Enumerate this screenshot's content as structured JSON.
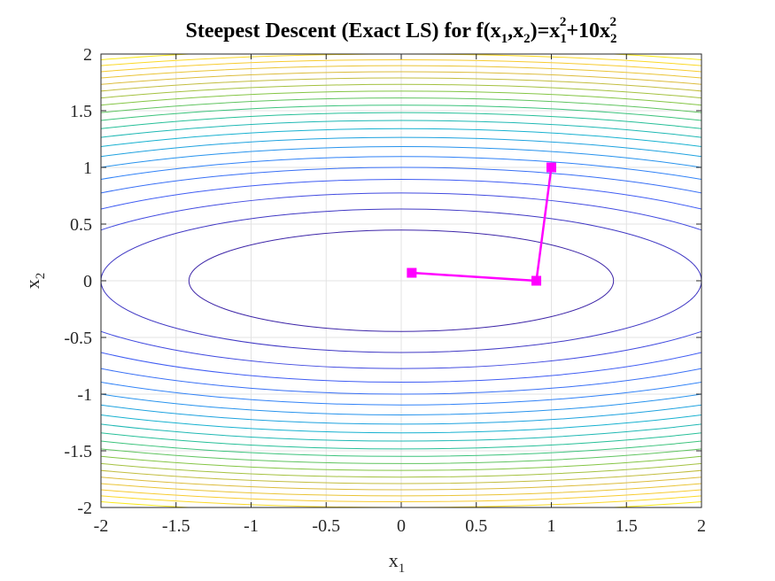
{
  "chart_data": {
    "type": "line",
    "title": {
      "prefix": "Steepest Descent (Exact LS) for f(x",
      "sub1": "1",
      "mid1": ",x",
      "sub2": "2",
      "mid2": ")=x",
      "sub3": "1",
      "sup3": "2",
      "mid3": "+10x",
      "sub4": "2",
      "sup4": "2"
    },
    "xlabel": {
      "base": "x",
      "sub": "1"
    },
    "ylabel": {
      "base": "x",
      "sub": "2"
    },
    "xlim": [
      -2,
      2
    ],
    "ylim": [
      -2,
      2
    ],
    "xticks": [
      -2,
      -1.5,
      -1,
      -0.5,
      0,
      0.5,
      1,
      1.5,
      2
    ],
    "yticks": [
      -2,
      -1.5,
      -1,
      -0.5,
      0,
      0.5,
      1,
      1.5,
      2
    ],
    "xtick_labels": [
      "-2",
      "-1.5",
      "-1",
      "-0.5",
      "0",
      "0.5",
      "1",
      "1.5",
      "2"
    ],
    "ytick_labels": [
      "-2",
      "-1.5",
      "-1",
      "-0.5",
      "0",
      "0.5",
      "1",
      "1.5",
      "2"
    ],
    "grid": true,
    "contour": {
      "function": "x1^2 + 10*x2^2",
      "levels": [
        2,
        4,
        6,
        8,
        10,
        12,
        14,
        16,
        18,
        20,
        22,
        24,
        26,
        28,
        30,
        32,
        34,
        36,
        38,
        40,
        42,
        44
      ],
      "colormap": [
        "#3e26a8",
        "#4255f2",
        "#2e87f7",
        "#16b0d3",
        "#2ac28a",
        "#89c540",
        "#d9ba3e",
        "#fcce2e",
        "#f9fb0e"
      ]
    },
    "series": [
      {
        "x": [
          1,
          0.9,
          0.07
        ],
        "y": [
          1,
          -0.0,
          0.07
        ],
        "color": "#ff00ff",
        "marker": "square"
      }
    ]
  }
}
